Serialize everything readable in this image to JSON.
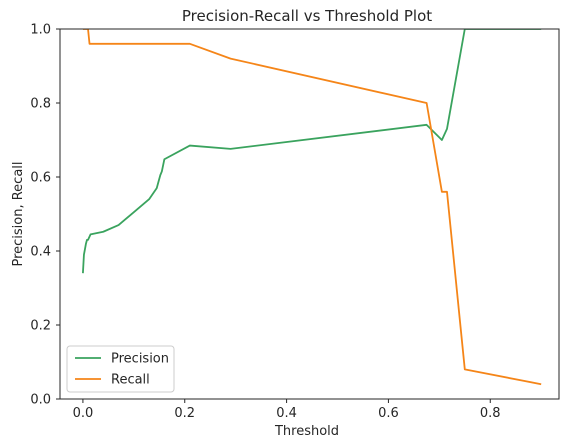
{
  "chart_data": {
    "type": "line",
    "title": "Precision-Recall vs Threshold Plot",
    "xlabel": "Threshold",
    "ylabel": "Precision, Recall",
    "xlim": [
      -0.045,
      0.935
    ],
    "ylim": [
      0.0,
      1.0
    ],
    "xticks": [
      0.0,
      0.2,
      0.4,
      0.6,
      0.8
    ],
    "xtick_labels": [
      "0.0",
      "0.2",
      "0.4",
      "0.6",
      "0.8"
    ],
    "yticks": [
      0.0,
      0.2,
      0.4,
      0.6,
      0.8,
      1.0
    ],
    "ytick_labels": [
      "0.0",
      "0.2",
      "0.4",
      "0.6",
      "0.8",
      "1.0"
    ],
    "grid": false,
    "legend_position": "lower-left",
    "series": [
      {
        "name": "Precision",
        "color": "#3aa35e",
        "x": [
          0.0,
          0.002,
          0.004,
          0.006,
          0.008,
          0.01,
          0.015,
          0.04,
          0.07,
          0.1,
          0.13,
          0.145,
          0.148,
          0.152,
          0.155,
          0.16,
          0.21,
          0.29,
          0.675,
          0.705,
          0.715,
          0.75,
          0.9
        ],
        "y": [
          0.34,
          0.39,
          0.405,
          0.42,
          0.43,
          0.43,
          0.445,
          0.452,
          0.47,
          0.505,
          0.54,
          0.57,
          0.585,
          0.605,
          0.615,
          0.648,
          0.685,
          0.676,
          0.741,
          0.7,
          0.73,
          1.0,
          1.0
        ]
      },
      {
        "name": "Recall",
        "color": "#f58518",
        "x": [
          0.0,
          0.01,
          0.013,
          0.21,
          0.29,
          0.675,
          0.69,
          0.705,
          0.715,
          0.75,
          0.9
        ],
        "y": [
          1.0,
          1.0,
          0.96,
          0.96,
          0.92,
          0.8,
          0.68,
          0.56,
          0.56,
          0.08,
          0.04
        ]
      }
    ]
  }
}
